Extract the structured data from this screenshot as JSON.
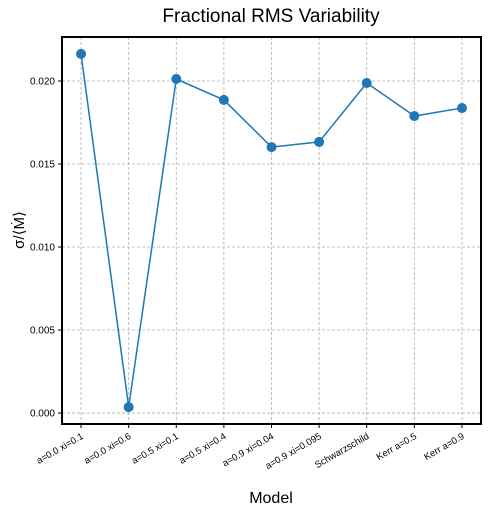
{
  "chart_data": {
    "type": "line",
    "title": "Fractional RMS Variability",
    "x_label": "Model",
    "y_label": "σ/⟨Ṁ⟩",
    "categories": [
      "a=0.0 xi=0.1",
      "a=0.0 xi=0.6",
      "a=0.5 xi=0.1",
      "a=0.5 xi=0.4",
      "a=0.9 xi=0.04",
      "a=0.9 xi=0.095",
      "Schwarzschild",
      "Kerr a=0.5",
      "Kerr a=0.9"
    ],
    "values": [
      0.02163,
      0.00036,
      0.02012,
      0.01886,
      0.01602,
      0.01633,
      0.01988,
      0.01789,
      0.01837
    ],
    "color": "#1f77b4",
    "ylim": [
      -0.00066,
      0.02265
    ],
    "yticks": [
      {
        "value": 0,
        "label": "0.000"
      },
      {
        "value": 0.005,
        "label": "0.005"
      },
      {
        "value": 0.01,
        "label": "0.010"
      },
      {
        "value": 0.015,
        "label": "0.015"
      },
      {
        "value": 0.02,
        "label": "0.020"
      }
    ],
    "grid": true
  }
}
